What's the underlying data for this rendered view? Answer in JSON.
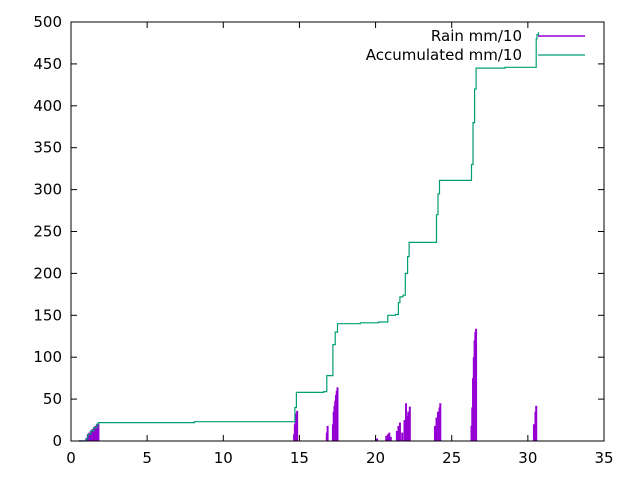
{
  "colors": {
    "rain": "#9400d3",
    "accumulated": "#009e73",
    "axis": "#000000",
    "background": "#ffffff"
  },
  "chart_data": {
    "type": "line",
    "title": "",
    "xlabel": "",
    "ylabel": "",
    "xlim": [
      0,
      35
    ],
    "ylim": [
      0,
      500
    ],
    "x_ticks": [
      0,
      5,
      10,
      15,
      20,
      25,
      30,
      35
    ],
    "y_ticks": [
      0,
      50,
      100,
      150,
      200,
      250,
      300,
      350,
      400,
      450,
      500
    ],
    "grid": false,
    "legend": {
      "position": "top-right",
      "entries": [
        "Rain mm/10",
        "Accumulated mm/10"
      ]
    },
    "series": [
      {
        "name": "Rain mm/10",
        "style": "impulses",
        "color": "#9400d3",
        "points": [
          [
            0.6,
            1
          ],
          [
            0.8,
            1
          ],
          [
            1.0,
            3
          ],
          [
            1.1,
            8
          ],
          [
            1.2,
            10
          ],
          [
            1.3,
            12
          ],
          [
            1.4,
            14
          ],
          [
            1.5,
            16
          ],
          [
            1.6,
            18
          ],
          [
            1.7,
            20
          ],
          [
            1.8,
            21
          ],
          [
            14.65,
            8
          ],
          [
            14.7,
            20
          ],
          [
            14.75,
            28
          ],
          [
            14.8,
            33
          ],
          [
            14.85,
            36
          ],
          [
            16.8,
            10
          ],
          [
            16.85,
            18
          ],
          [
            17.2,
            20
          ],
          [
            17.25,
            35
          ],
          [
            17.3,
            42
          ],
          [
            17.35,
            48
          ],
          [
            17.4,
            55
          ],
          [
            17.45,
            60
          ],
          [
            17.5,
            64
          ],
          [
            20.1,
            3
          ],
          [
            20.7,
            6
          ],
          [
            20.8,
            8
          ],
          [
            20.9,
            10
          ],
          [
            21.0,
            5
          ],
          [
            21.4,
            12
          ],
          [
            21.5,
            18
          ],
          [
            21.6,
            22
          ],
          [
            21.75,
            10
          ],
          [
            21.9,
            25
          ],
          [
            22.0,
            45
          ],
          [
            22.05,
            30
          ],
          [
            22.15,
            35
          ],
          [
            22.25,
            41
          ],
          [
            23.9,
            18
          ],
          [
            24.0,
            28
          ],
          [
            24.1,
            35
          ],
          [
            24.2,
            40
          ],
          [
            24.25,
            45
          ],
          [
            26.3,
            18
          ],
          [
            26.35,
            40
          ],
          [
            26.4,
            75
          ],
          [
            26.45,
            100
          ],
          [
            26.5,
            120
          ],
          [
            26.55,
            130
          ],
          [
            26.6,
            134
          ],
          [
            30.4,
            20
          ],
          [
            30.5,
            35
          ],
          [
            30.55,
            42
          ]
        ]
      },
      {
        "name": "Accumulated mm/10",
        "style": "steps",
        "color": "#009e73",
        "points": [
          [
            0.5,
            0
          ],
          [
            1.0,
            3
          ],
          [
            1.1,
            8
          ],
          [
            1.3,
            12
          ],
          [
            1.5,
            16
          ],
          [
            1.7,
            20
          ],
          [
            1.8,
            22
          ],
          [
            8.0,
            22
          ],
          [
            8.1,
            23
          ],
          [
            14.6,
            23
          ],
          [
            14.7,
            40
          ],
          [
            14.8,
            58
          ],
          [
            16.6,
            59
          ],
          [
            16.8,
            78
          ],
          [
            17.0,
            78
          ],
          [
            17.2,
            115
          ],
          [
            17.35,
            130
          ],
          [
            17.5,
            140
          ],
          [
            19.0,
            141
          ],
          [
            20.2,
            142
          ],
          [
            20.8,
            150
          ],
          [
            21.3,
            151
          ],
          [
            21.5,
            165
          ],
          [
            21.6,
            172
          ],
          [
            21.8,
            174
          ],
          [
            21.95,
            200
          ],
          [
            22.1,
            220
          ],
          [
            22.2,
            237
          ],
          [
            24.0,
            270
          ],
          [
            24.1,
            295
          ],
          [
            24.2,
            311
          ],
          [
            26.3,
            330
          ],
          [
            26.4,
            380
          ],
          [
            26.5,
            420
          ],
          [
            26.6,
            445
          ],
          [
            28.5,
            446
          ],
          [
            30.5,
            446
          ],
          [
            30.55,
            480
          ],
          [
            30.6,
            485
          ],
          [
            30.7,
            488
          ]
        ]
      }
    ]
  }
}
